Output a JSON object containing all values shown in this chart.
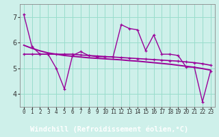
{
  "xlabel": "Windchill (Refroidissement éolien,°C)",
  "background_color": "#cef0ea",
  "plot_bg_color": "#cef0ea",
  "xlabel_bg_color": "#660066",
  "xlabel_text_color": "#ffffff",
  "line_color": "#990099",
  "grid_color": "#99ddcc",
  "hours": [
    0,
    1,
    2,
    3,
    4,
    5,
    6,
    7,
    8,
    9,
    10,
    11,
    12,
    13,
    14,
    15,
    16,
    17,
    18,
    19,
    20,
    21,
    22,
    23
  ],
  "windchill": [
    7.1,
    5.85,
    5.55,
    5.55,
    5.0,
    4.2,
    5.5,
    5.65,
    5.5,
    5.45,
    5.45,
    5.45,
    6.7,
    6.55,
    6.5,
    5.7,
    6.3,
    5.55,
    5.55,
    5.5,
    5.05,
    5.05,
    3.7,
    4.9
  ],
  "trend": [
    5.9,
    5.78,
    5.68,
    5.6,
    5.55,
    5.5,
    5.47,
    5.44,
    5.41,
    5.39,
    5.37,
    5.35,
    5.33,
    5.3,
    5.28,
    5.25,
    5.22,
    5.19,
    5.16,
    5.12,
    5.08,
    5.04,
    4.99,
    4.93
  ],
  "flat_line": [
    5.55,
    5.55,
    5.55,
    5.55,
    5.55,
    5.55,
    5.55,
    5.52,
    5.5,
    5.48,
    5.46,
    5.44,
    5.42,
    5.4,
    5.38,
    5.36,
    5.34,
    5.32,
    5.3,
    5.28,
    5.25,
    5.22,
    5.18,
    5.12
  ],
  "ylim": [
    3.5,
    7.5
  ],
  "xlim_min": -0.5,
  "xlim_max": 23.5,
  "yticks": [
    4,
    5,
    6,
    7
  ],
  "fontsize_tick": 7,
  "fontsize_xlabel": 7.5,
  "marker_size": 3.5
}
